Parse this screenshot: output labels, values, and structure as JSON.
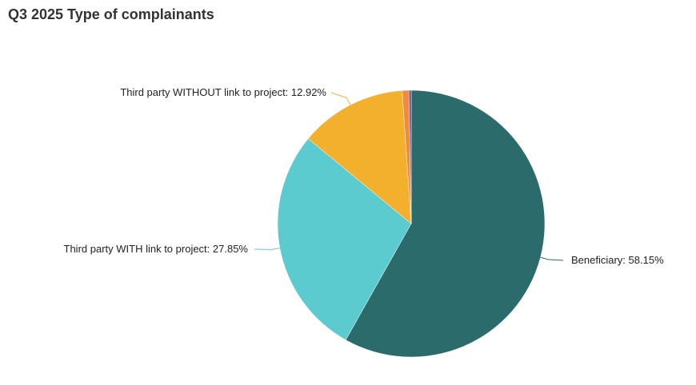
{
  "title": "Q3 2025 Type of complainants",
  "chart_data": {
    "type": "pie",
    "title": "Q3 2025 Type of complainants",
    "slices": [
      {
        "name": "Beneficiary",
        "value": 58.15,
        "label": "Beneficiary: 58.15%",
        "color": "#2b6b6b"
      },
      {
        "name": "Third party WITH link to project",
        "value": 27.85,
        "label": "Third party WITH link to project: 27.85%",
        "color": "#5ccbd0"
      },
      {
        "name": "Third party WITHOUT link to project",
        "value": 12.92,
        "label": "Third party WITHOUT link to project: 12.92%",
        "color": "#f3b02d"
      },
      {
        "name": "",
        "value": 0.81,
        "label": "",
        "color": "#f08a3c"
      },
      {
        "name": "",
        "value": 0.27,
        "label": "",
        "color": "#6b4c9a"
      }
    ]
  }
}
